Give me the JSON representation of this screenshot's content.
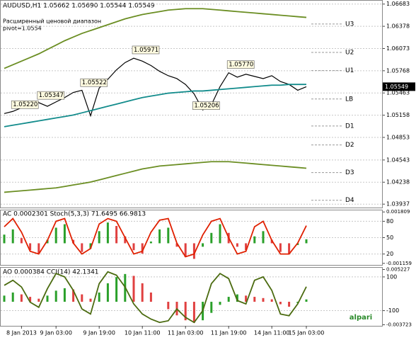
{
  "chart_data": [
    {
      "type": "line",
      "title": "AUDUSD,H1 1.05662 1.05690 1.05544 1.05549",
      "subtitle": [
        "Расширенный ценовой диапазон",
        "pivot=1.0554"
      ],
      "ylim": [
        1.039,
        1.067
      ],
      "yticks": [
        1.06683,
        1.06378,
        1.06073,
        1.05768,
        1.05463,
        1.05158,
        1.04853,
        1.04543,
        1.04238,
        1.03937
      ],
      "grid": true,
      "series": [
        {
          "color": "#000000",
          "values": [
            1.0518,
            1.0521,
            1.0526,
            1.053,
            1.0533,
            1.0528,
            1.0534,
            1.054,
            1.0547,
            1.055,
            1.0515,
            1.0553,
            1.0565,
            1.0578,
            1.0588,
            1.0594,
            1.059,
            1.0584,
            1.0576,
            1.057,
            1.0566,
            1.0558,
            1.0545,
            1.0523,
            1.053,
            1.0555,
            1.0574,
            1.0568,
            1.0572,
            1.0569,
            1.0566,
            1.057,
            1.0562,
            1.0558,
            1.055,
            1.05549
          ]
        },
        {
          "color": "#138c8c",
          "values": [
            1.05,
            1.0502,
            1.0504,
            1.0506,
            1.0508,
            1.051,
            1.0512,
            1.0514,
            1.0516,
            1.0519,
            1.0522,
            1.0525,
            1.0528,
            1.0531,
            1.0534,
            1.0537,
            1.054,
            1.0542,
            1.0544,
            1.0546,
            1.0547,
            1.0548,
            1.0549,
            1.0549,
            1.055,
            1.0551,
            1.0552,
            1.0553,
            1.0554,
            1.0555,
            1.0556,
            1.0557,
            1.0557,
            1.0558,
            1.0558,
            1.0558
          ]
        },
        {
          "color": "#6b8e23",
          "values": [
            1.041,
            1.0411,
            1.0412,
            1.0413,
            1.0414,
            1.0415,
            1.0416,
            1.0418,
            1.042,
            1.0422,
            1.0424,
            1.0427,
            1.043,
            1.0433,
            1.0436,
            1.0439,
            1.0442,
            1.0444,
            1.0446,
            1.0447,
            1.0448,
            1.0449,
            1.045,
            1.0451,
            1.0452,
            1.0452,
            1.0452,
            1.0451,
            1.045,
            1.0449,
            1.0448,
            1.0447,
            1.0446,
            1.0445,
            1.0444,
            1.0443
          ]
        },
        {
          "color": "#6b8e23",
          "values": [
            1.058,
            1.0585,
            1.059,
            1.0595,
            1.06,
            1.0606,
            1.0612,
            1.0618,
            1.0623,
            1.0628,
            1.0632,
            1.0636,
            1.064,
            1.0644,
            1.0648,
            1.0651,
            1.0654,
            1.0656,
            1.0658,
            1.066,
            1.0661,
            1.0662,
            1.0662,
            1.0662,
            1.0661,
            1.066,
            1.0659,
            1.0658,
            1.0657,
            1.0656,
            1.0655,
            1.0654,
            1.0653,
            1.0652,
            1.0651,
            1.065
          ]
        }
      ],
      "annotations": [
        {
          "text": "1.05220",
          "value": 1.0522,
          "x": 1
        },
        {
          "text": "1.05347",
          "value": 1.05347,
          "x": 4
        },
        {
          "text": "1.05522",
          "value": 1.05522,
          "x": 9
        },
        {
          "text": "1.05971",
          "value": 1.05971,
          "x": 15
        },
        {
          "text": "1.05770",
          "value": 1.0577,
          "x": 26
        },
        {
          "text": "1.05206",
          "value": 1.05206,
          "x": 22
        }
      ],
      "levels": [
        {
          "label": "U3",
          "value": 1.0641
        },
        {
          "label": "U2",
          "value": 1.0602
        },
        {
          "label": "U1",
          "value": 1.0577
        },
        {
          "label": "LB",
          "value": 1.0538
        },
        {
          "label": "D1",
          "value": 1.0501
        },
        {
          "label": "D2",
          "value": 1.0475
        },
        {
          "label": "D3",
          "value": 1.0437
        },
        {
          "label": "D4",
          "value": 1.0399
        }
      ],
      "last": {
        "value": 1.05549,
        "label": "1.05549"
      }
    },
    {
      "type": "line",
      "title": "AC 0.0002301  Stoch(5,3,3) 71.6495 66.9813",
      "ylim": [
        0,
        100
      ],
      "yticks": [
        80,
        50,
        20
      ],
      "y2lim": [
        -0.00125,
        0.0019
      ],
      "y2ticks": [
        0.001809,
        -0.001159
      ],
      "up_color": "#2aa02a",
      "down_color": "#e04040",
      "series": [
        {
          "axis": "y2",
          "style": "bar",
          "values": [
            0.0005,
            0.0008,
            0.0003,
            -0.0004,
            -0.0006,
            0.0002,
            0.0009,
            0.0011,
            0.0002,
            -0.0005,
            -0.0003,
            0.0007,
            0.0012,
            0.001,
            0.0004,
            -0.0004,
            -0.0006,
            0.0001,
            0.0008,
            0.0009,
            -0.0002,
            -0.0008,
            -0.0009,
            -0.0002,
            0.0006,
            0.0011,
            0.0006,
            -0.0002,
            -0.0004,
            0.0004,
            0.0007,
            0.0002,
            -0.0005,
            -0.0006,
            -0.0001,
            0.00023
          ]
        },
        {
          "color": "#e02000",
          "values": [
            70,
            85,
            60,
            25,
            20,
            45,
            80,
            85,
            40,
            20,
            30,
            75,
            85,
            80,
            50,
            20,
            25,
            60,
            82,
            85,
            40,
            15,
            20,
            55,
            80,
            85,
            50,
            20,
            25,
            70,
            80,
            45,
            20,
            20,
            40,
            72
          ]
        }
      ]
    },
    {
      "type": "line",
      "title": "AO 0.000384  CCI(14) 42.1341",
      "ylim": [
        -190,
        150
      ],
      "yticks": [
        100,
        -100
      ],
      "y2lim": [
        -0.0039,
        0.0054
      ],
      "y2ticks": [
        0.005227,
        -0.003723
      ],
      "up_color": "#2aa02a",
      "down_color": "#e04040",
      "logo": "alpari",
      "categories": [
        null,
        null,
        "8 Jan 2013",
        null,
        null,
        null,
        "9 Jan 03:00",
        null,
        null,
        null,
        null,
        "9 Jan 19:00",
        null,
        null,
        null,
        null,
        "10 Jan 11:00",
        null,
        null,
        null,
        null,
        "11 Jan 03:00",
        null,
        null,
        null,
        null,
        "11 Jan 19:00",
        null,
        null,
        null,
        null,
        "14 Jan 11:00",
        null,
        null,
        null,
        "15 Jan 03:00"
      ],
      "series": [
        {
          "axis": "y2",
          "style": "bar",
          "values": [
            0.001,
            0.0015,
            0.0012,
            0.0008,
            0.0005,
            0.001,
            0.0018,
            0.0022,
            0.002,
            0.0012,
            0.0005,
            0.0015,
            0.003,
            0.004,
            0.0045,
            0.0042,
            0.003,
            0.0015,
            0.0,
            -0.0012,
            -0.0022,
            -0.003,
            -0.0034,
            -0.003,
            -0.0018,
            -0.0005,
            0.0008,
            0.0012,
            0.001,
            0.0008,
            0.0006,
            0.0004,
            -0.0004,
            -0.0008,
            -0.0002,
            0.000384
          ]
        },
        {
          "color": "#4b6b10",
          "values": [
            50,
            80,
            40,
            -50,
            -80,
            30,
            120,
            100,
            20,
            -90,
            -120,
            60,
            130,
            110,
            40,
            -60,
            -120,
            -150,
            -170,
            -160,
            -90,
            -140,
            -170,
            -100,
            60,
            120,
            90,
            -40,
            -60,
            80,
            100,
            20,
            -120,
            -130,
            -60,
            42
          ]
        }
      ]
    }
  ]
}
